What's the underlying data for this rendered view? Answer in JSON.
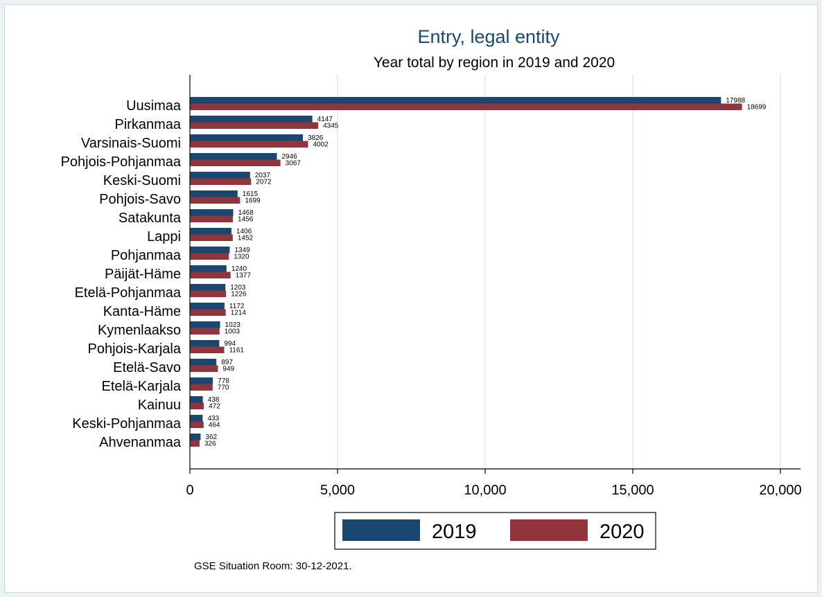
{
  "chart_data": {
    "type": "bar",
    "orientation": "horizontal",
    "title": "Entry, legal entity",
    "subtitle": "Year total by region in 2019 and 2020",
    "note": "GSE Situation Room: 30-12-2021.",
    "categories": [
      "Uusimaa",
      "Pirkanmaa",
      "Varsinais-Suomi",
      "Pohjois-Pohjanmaa",
      "Keski-Suomi",
      "Pohjois-Savo",
      "Satakunta",
      "Lappi",
      "Pohjanmaa",
      "Päijät-Häme",
      "Etelä-Pohjanmaa",
      "Kanta-Häme",
      "Kymenlaakso",
      "Pohjois-Karjala",
      "Etelä-Savo",
      "Etelä-Karjala",
      "Kainuu",
      "Keski-Pohjanmaa",
      "Ahvenanmaa"
    ],
    "series": [
      {
        "name": "2019",
        "color": "#1a476f",
        "values": [
          17988,
          4147,
          3826,
          2946,
          2037,
          1615,
          1468,
          1406,
          1349,
          1240,
          1203,
          1172,
          1023,
          994,
          897,
          778,
          438,
          433,
          362
        ]
      },
      {
        "name": "2020",
        "color": "#90353b",
        "values": [
          18699,
          4345,
          4002,
          3067,
          2072,
          1699,
          1456,
          1452,
          1320,
          1377,
          1226,
          1214,
          1003,
          1161,
          949,
          770,
          472,
          464,
          326
        ]
      }
    ],
    "xlim": [
      0,
      20000
    ],
    "xticks": [
      0,
      5000,
      10000,
      15000,
      20000
    ],
    "xtick_labels": [
      "0",
      "5,000",
      "10,000",
      "15,000",
      "20,000"
    ],
    "grid": true,
    "legend_position": "bottom"
  }
}
